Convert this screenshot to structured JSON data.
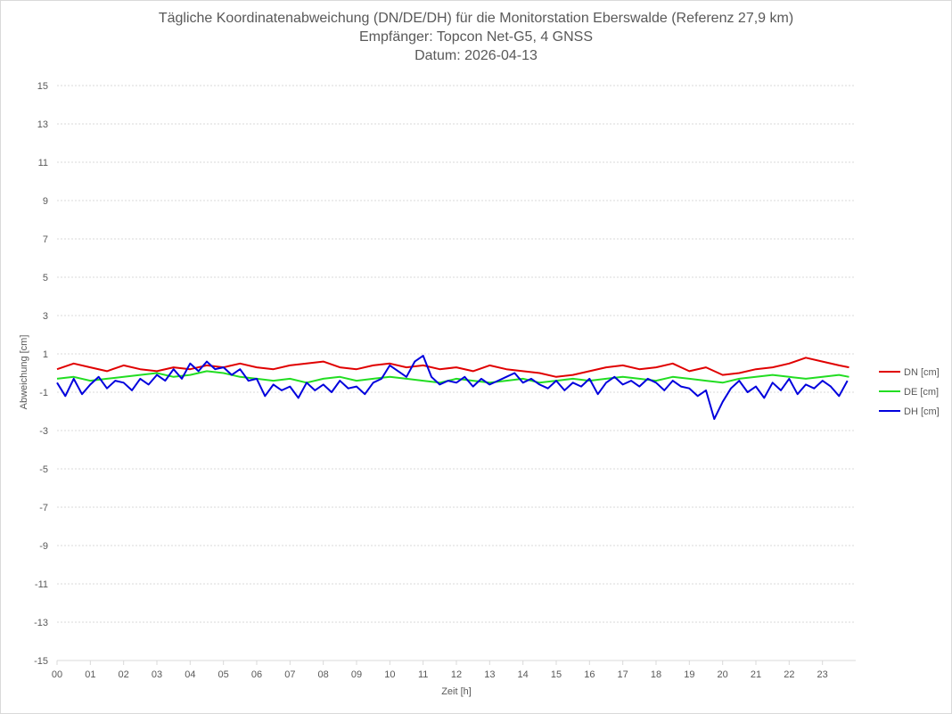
{
  "chart_data": {
    "type": "line",
    "title": "Tägliche Koordinatenabweichung (DN/DE/DH) für die Monitorstation Eberswalde (Referenz 27,9 km)",
    "subtitle1": "Empfänger: Topcon Net-G5, 4 GNSS",
    "subtitle2": "Datum: 2026-04-13",
    "xlabel": "Zeit [h]",
    "ylabel": "Abweichung [cm]",
    "xlim": [
      0,
      24
    ],
    "ylim": [
      -15,
      15
    ],
    "x_ticks": [
      "00",
      "01",
      "02",
      "03",
      "04",
      "05",
      "06",
      "07",
      "08",
      "09",
      "10",
      "11",
      "12",
      "13",
      "14",
      "15",
      "16",
      "17",
      "18",
      "19",
      "20",
      "21",
      "22",
      "23"
    ],
    "y_ticks": [
      "15",
      "13",
      "11",
      "9",
      "7",
      "5",
      "3",
      "1",
      "-1",
      "-3",
      "-5",
      "-7",
      "-9",
      "-11",
      "-13",
      "-15"
    ],
    "grid": true,
    "legend_position": "right",
    "series": [
      {
        "name": "DN [cm]",
        "color": "#e00000",
        "x": [
          0,
          0.5,
          1,
          1.5,
          2,
          2.5,
          3,
          3.5,
          4,
          4.5,
          5,
          5.5,
          6,
          6.5,
          7,
          7.5,
          8,
          8.5,
          9,
          9.5,
          10,
          10.5,
          11,
          11.5,
          12,
          12.5,
          13,
          13.5,
          14,
          14.5,
          15,
          15.5,
          16,
          16.5,
          17,
          17.5,
          18,
          18.5,
          19,
          19.5,
          20,
          20.5,
          21,
          21.5,
          22,
          22.5,
          23,
          23.5,
          23.8
        ],
        "values": [
          0.2,
          0.5,
          0.3,
          0.1,
          0.4,
          0.2,
          0.1,
          0.3,
          0.2,
          0.4,
          0.3,
          0.5,
          0.3,
          0.2,
          0.4,
          0.5,
          0.6,
          0.3,
          0.2,
          0.4,
          0.5,
          0.3,
          0.4,
          0.2,
          0.3,
          0.1,
          0.4,
          0.2,
          0.1,
          0.0,
          -0.2,
          -0.1,
          0.1,
          0.3,
          0.4,
          0.2,
          0.3,
          0.5,
          0.1,
          0.3,
          -0.1,
          0.0,
          0.2,
          0.3,
          0.5,
          0.8,
          0.6,
          0.4,
          0.3
        ]
      },
      {
        "name": "DE [cm]",
        "color": "#22dd22",
        "x": [
          0,
          0.5,
          1,
          1.5,
          2,
          2.5,
          3,
          3.5,
          4,
          4.5,
          5,
          5.5,
          6,
          6.5,
          7,
          7.5,
          8,
          8.5,
          9,
          9.5,
          10,
          10.5,
          11,
          11.5,
          12,
          12.5,
          13,
          13.5,
          14,
          14.5,
          15,
          15.5,
          16,
          16.5,
          17,
          17.5,
          18,
          18.5,
          19,
          19.5,
          20,
          20.5,
          21,
          21.5,
          22,
          22.5,
          23,
          23.5,
          23.8
        ],
        "values": [
          -0.3,
          -0.2,
          -0.4,
          -0.3,
          -0.2,
          -0.1,
          0.0,
          -0.2,
          -0.1,
          0.1,
          0.0,
          -0.2,
          -0.3,
          -0.4,
          -0.3,
          -0.5,
          -0.3,
          -0.2,
          -0.4,
          -0.3,
          -0.2,
          -0.3,
          -0.4,
          -0.5,
          -0.3,
          -0.4,
          -0.5,
          -0.4,
          -0.3,
          -0.5,
          -0.4,
          -0.3,
          -0.4,
          -0.3,
          -0.2,
          -0.3,
          -0.4,
          -0.2,
          -0.3,
          -0.4,
          -0.5,
          -0.3,
          -0.2,
          -0.1,
          -0.2,
          -0.3,
          -0.2,
          -0.1,
          -0.2
        ]
      },
      {
        "name": "DH [cm]",
        "color": "#0000dd",
        "x": [
          0,
          0.25,
          0.5,
          0.75,
          1,
          1.25,
          1.5,
          1.75,
          2,
          2.25,
          2.5,
          2.75,
          3,
          3.25,
          3.5,
          3.75,
          4,
          4.25,
          4.5,
          4.75,
          5,
          5.25,
          5.5,
          5.75,
          6,
          6.25,
          6.5,
          6.75,
          7,
          7.25,
          7.5,
          7.75,
          8,
          8.25,
          8.5,
          8.75,
          9,
          9.25,
          9.5,
          9.75,
          10,
          10.25,
          10.5,
          10.75,
          11,
          11.25,
          11.5,
          11.75,
          12,
          12.25,
          12.5,
          12.75,
          13,
          13.25,
          13.5,
          13.75,
          14,
          14.25,
          14.5,
          14.75,
          15,
          15.25,
          15.5,
          15.75,
          16,
          16.25,
          16.5,
          16.75,
          17,
          17.25,
          17.5,
          17.75,
          18,
          18.25,
          18.5,
          18.75,
          19,
          19.25,
          19.5,
          19.75,
          20,
          20.25,
          20.5,
          20.75,
          21,
          21.25,
          21.5,
          21.75,
          22,
          22.25,
          22.5,
          22.75,
          23,
          23.25,
          23.5,
          23.75
        ],
        "values": [
          -0.5,
          -1.2,
          -0.3,
          -1.1,
          -0.6,
          -0.2,
          -0.8,
          -0.4,
          -0.5,
          -0.9,
          -0.3,
          -0.6,
          -0.1,
          -0.4,
          0.2,
          -0.3,
          0.5,
          0.1,
          0.6,
          0.2,
          0.3,
          -0.1,
          0.2,
          -0.4,
          -0.3,
          -1.2,
          -0.6,
          -0.9,
          -0.7,
          -1.3,
          -0.5,
          -0.9,
          -0.6,
          -1.0,
          -0.4,
          -0.8,
          -0.7,
          -1.1,
          -0.5,
          -0.3,
          0.4,
          0.1,
          -0.2,
          0.6,
          0.9,
          -0.2,
          -0.6,
          -0.4,
          -0.5,
          -0.2,
          -0.7,
          -0.3,
          -0.6,
          -0.4,
          -0.2,
          0.0,
          -0.5,
          -0.3,
          -0.6,
          -0.8,
          -0.4,
          -0.9,
          -0.5,
          -0.7,
          -0.3,
          -1.1,
          -0.5,
          -0.2,
          -0.6,
          -0.4,
          -0.7,
          -0.3,
          -0.5,
          -0.9,
          -0.4,
          -0.7,
          -0.8,
          -1.2,
          -0.9,
          -2.4,
          -1.5,
          -0.8,
          -0.4,
          -1.0,
          -0.7,
          -1.3,
          -0.5,
          -0.9,
          -0.3,
          -1.1,
          -0.6,
          -0.8,
          -0.4,
          -0.7,
          -1.2,
          -0.4
        ]
      }
    ]
  }
}
